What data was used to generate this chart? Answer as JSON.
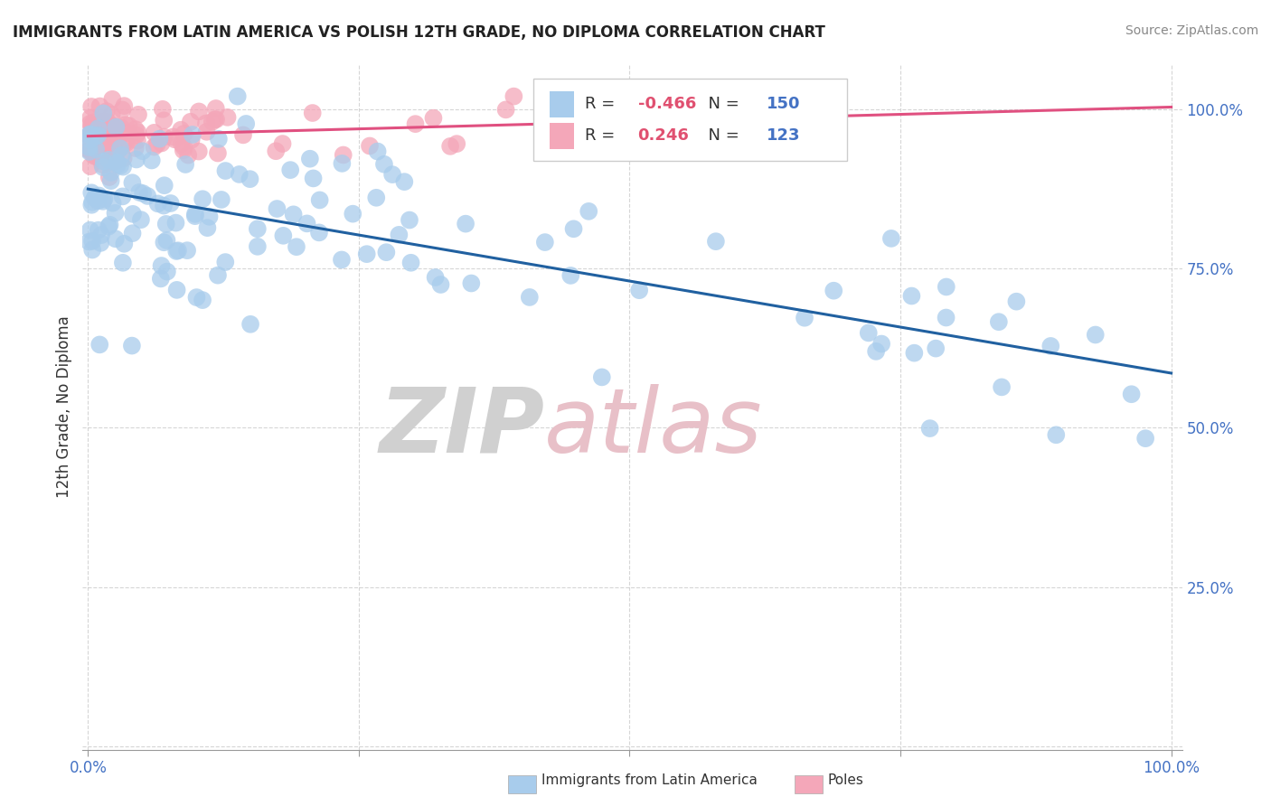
{
  "title": "IMMIGRANTS FROM LATIN AMERICA VS POLISH 12TH GRADE, NO DIPLOMA CORRELATION CHART",
  "source": "Source: ZipAtlas.com",
  "ylabel": "12th Grade, No Diploma",
  "legend_label1": "Immigrants from Latin America",
  "legend_label2": "Poles",
  "R1": -0.466,
  "N1": 150,
  "R2": 0.246,
  "N2": 123,
  "blue_color": "#a8ccec",
  "pink_color": "#f4a7b9",
  "blue_line_color": "#2060a0",
  "pink_line_color": "#e05080",
  "tick_color": "#4472c4",
  "R_color": "#e05070",
  "N_color": "#4472c4"
}
